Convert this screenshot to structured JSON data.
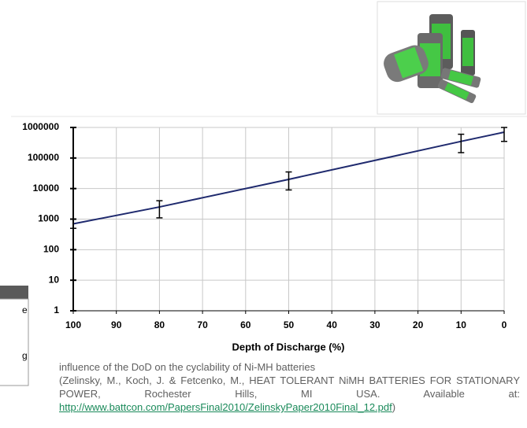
{
  "chart_data": {
    "type": "line",
    "x_label": "Depth of Discharge (%)",
    "x": [
      100,
      80,
      50,
      10,
      0
    ],
    "values": [
      700,
      2500,
      20000,
      350000,
      700000
    ],
    "error_low": [
      500,
      1100,
      9000,
      150000,
      350000
    ],
    "error_high": [
      1000,
      4000,
      35000,
      600000,
      1000000
    ],
    "color": "#1f2a6e",
    "xlim": [
      100,
      0
    ],
    "xticks": [
      100,
      90,
      80,
      70,
      60,
      50,
      40,
      30,
      20,
      10,
      0
    ],
    "ylim": [
      1,
      1000000
    ],
    "yticks": [
      1,
      10,
      100,
      1000,
      10000,
      100000,
      1000000
    ],
    "log_y": true,
    "grid": true
  },
  "caption": {
    "title": "influence of the DoD on the cyclability of Ni-MH batteries",
    "citation": "(Zelinsky, M., Koch, J. & Fetcenko, M., HEAT TOLERANT NiMH BATTERIES FOR STATIONARY POWER, Rochester Hills, MI USA. Available at:",
    "link": "http://www.battcon.com/PapersFinal2010/ZelinskyPaper2010Final_12.pdf",
    "closing": ")"
  },
  "side_fragments": [
    "e",
    "g"
  ]
}
